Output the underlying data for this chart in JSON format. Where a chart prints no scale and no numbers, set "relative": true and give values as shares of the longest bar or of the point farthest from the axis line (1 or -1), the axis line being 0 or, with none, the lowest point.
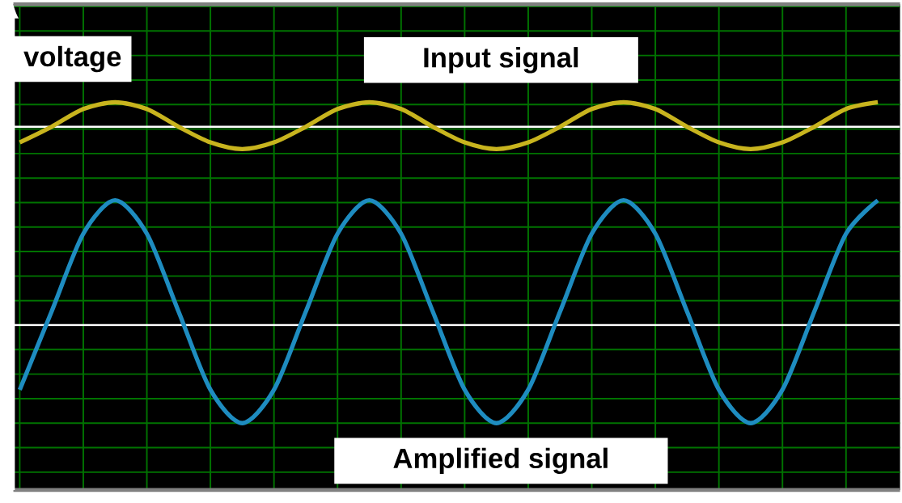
{
  "chart_data": {
    "type": "line",
    "relative": true,
    "ylabel": "voltage",
    "grid": true,
    "marker": "none",
    "line_style": "solid",
    "categories": [
      null,
      null,
      null,
      null,
      null,
      null,
      null,
      null,
      null,
      null,
      null,
      null,
      null,
      null,
      null,
      null,
      null,
      null,
      null,
      null,
      null,
      null,
      null,
      null,
      null,
      null,
      null,
      null
    ],
    "series": [
      {
        "name": "Input signal",
        "color": "#c8b41e",
        "values": [
          0.82,
          0.89,
          0.97,
          1,
          0.97,
          0.89,
          0.82,
          0.79,
          0.82,
          0.89,
          0.97,
          1,
          0.97,
          0.89,
          0.82,
          0.79,
          0.82,
          0.89,
          0.97,
          1,
          0.97,
          0.89,
          0.82,
          0.79,
          0.82,
          0.89,
          0.97,
          1
        ]
      },
      {
        "name": "Amplified signal",
        "color": "#1e8cc0",
        "values": [
          -0.29,
          0.06,
          0.41,
          0.56,
          0.41,
          0.06,
          -0.29,
          -0.44,
          -0.29,
          0.06,
          0.41,
          0.56,
          0.41,
          0.06,
          -0.29,
          -0.44,
          -0.29,
          0.06,
          0.41,
          0.56,
          0.41,
          0.06,
          -0.29,
          -0.44,
          -0.29,
          0.06,
          0.41,
          0.56
        ]
      }
    ],
    "ref_lines": [
      {
        "axis": "y",
        "value": 0.89,
        "color": "#ffffff"
      }
    ]
  }
}
